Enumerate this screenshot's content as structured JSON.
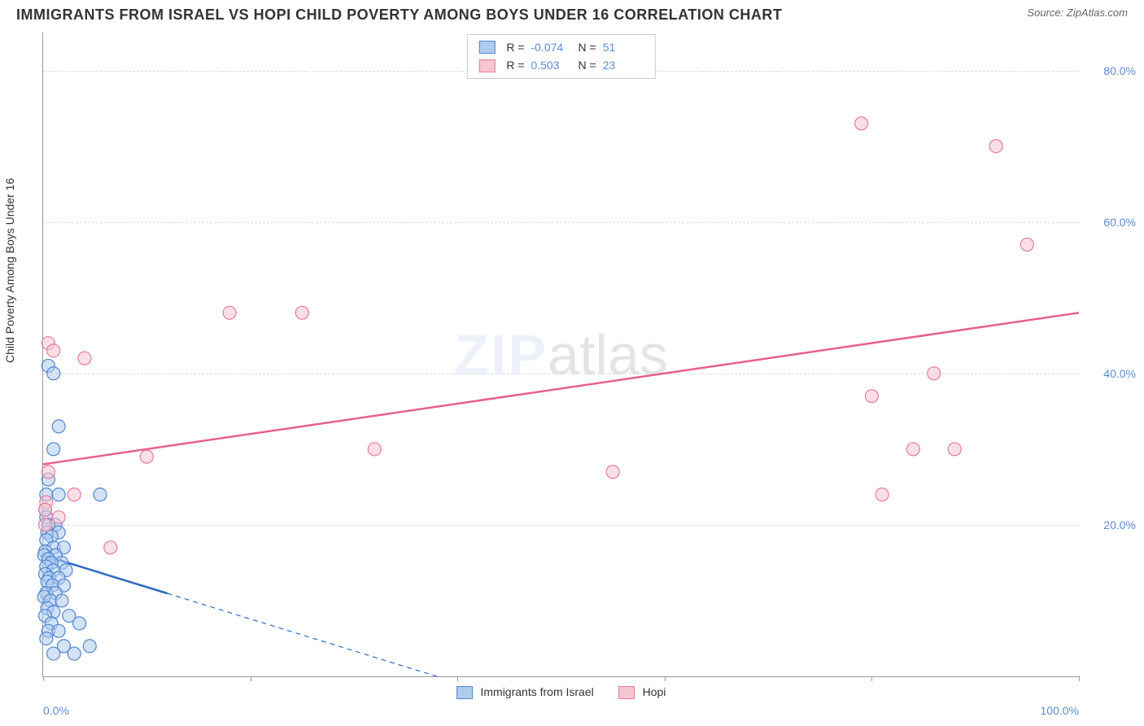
{
  "header": {
    "title": "IMMIGRANTS FROM ISRAEL VS HOPI CHILD POVERTY AMONG BOYS UNDER 16 CORRELATION CHART",
    "source_label": "Source:",
    "source_value": "ZipAtlas.com"
  },
  "watermark": {
    "zip": "ZIP",
    "atlas": "atlas"
  },
  "chart": {
    "type": "scatter",
    "ylabel": "Child Poverty Among Boys Under 16",
    "xlim": [
      0,
      100
    ],
    "ylim": [
      0,
      85
    ],
    "xtick_positions": [
      0,
      20,
      40,
      60,
      80,
      100
    ],
    "xtick_labels_shown": {
      "0": "0.0%",
      "100": "100.0%"
    },
    "ytick_positions": [
      20,
      40,
      60,
      80
    ],
    "ytick_labels": [
      "20.0%",
      "40.0%",
      "60.0%",
      "80.0%"
    ],
    "grid_color": "#dddddd",
    "background_color": "#ffffff",
    "axis_color": "#999999",
    "tick_label_color": "#5b8dd6",
    "marker_radius": 8,
    "marker_stroke_width": 1.2,
    "trend_line_width": 2.5,
    "series": [
      {
        "name": "Immigrants from Israel",
        "fill": "#aecbec",
        "stroke": "#4f86d1",
        "fill_opacity": 0.55,
        "legend_fill": "#aecbec",
        "legend_stroke": "#4f86d1",
        "R": "-0.074",
        "N": "51",
        "trend": {
          "x1": 0,
          "y1": 16,
          "x2": 38,
          "y2": 0,
          "color": "#2e6bc0",
          "dash_tail": true,
          "solid_until_x": 12
        },
        "points": [
          {
            "x": 0.5,
            "y": 41
          },
          {
            "x": 1.0,
            "y": 40
          },
          {
            "x": 1.5,
            "y": 33
          },
          {
            "x": 1.0,
            "y": 30
          },
          {
            "x": 0.5,
            "y": 26
          },
          {
            "x": 0.3,
            "y": 24
          },
          {
            "x": 1.5,
            "y": 24
          },
          {
            "x": 5.5,
            "y": 24
          },
          {
            "x": 0.2,
            "y": 22
          },
          {
            "x": 0.3,
            "y": 21
          },
          {
            "x": 1.2,
            "y": 20
          },
          {
            "x": 0.5,
            "y": 20
          },
          {
            "x": 0.4,
            "y": 19
          },
          {
            "x": 1.5,
            "y": 19
          },
          {
            "x": 0.8,
            "y": 18.5
          },
          {
            "x": 0.3,
            "y": 18
          },
          {
            "x": 1.0,
            "y": 17
          },
          {
            "x": 2.0,
            "y": 17
          },
          {
            "x": 0.2,
            "y": 16.5
          },
          {
            "x": 1.2,
            "y": 16
          },
          {
            "x": 0.1,
            "y": 16
          },
          {
            "x": 0.5,
            "y": 15.5
          },
          {
            "x": 1.8,
            "y": 15
          },
          {
            "x": 0.8,
            "y": 15
          },
          {
            "x": 0.3,
            "y": 14.5
          },
          {
            "x": 1.0,
            "y": 14
          },
          {
            "x": 2.2,
            "y": 14
          },
          {
            "x": 0.2,
            "y": 13.5
          },
          {
            "x": 0.6,
            "y": 13
          },
          {
            "x": 1.5,
            "y": 13
          },
          {
            "x": 0.4,
            "y": 12.5
          },
          {
            "x": 0.9,
            "y": 12
          },
          {
            "x": 2.0,
            "y": 12
          },
          {
            "x": 0.3,
            "y": 11
          },
          {
            "x": 1.2,
            "y": 11
          },
          {
            "x": 0.1,
            "y": 10.5
          },
          {
            "x": 0.7,
            "y": 10
          },
          {
            "x": 1.8,
            "y": 10
          },
          {
            "x": 0.4,
            "y": 9
          },
          {
            "x": 1.0,
            "y": 8.5
          },
          {
            "x": 2.5,
            "y": 8
          },
          {
            "x": 0.2,
            "y": 8
          },
          {
            "x": 0.8,
            "y": 7
          },
          {
            "x": 3.5,
            "y": 7
          },
          {
            "x": 0.5,
            "y": 6
          },
          {
            "x": 1.5,
            "y": 6
          },
          {
            "x": 0.3,
            "y": 5
          },
          {
            "x": 2.0,
            "y": 4
          },
          {
            "x": 4.5,
            "y": 4
          },
          {
            "x": 1.0,
            "y": 3
          },
          {
            "x": 3.0,
            "y": 3
          }
        ]
      },
      {
        "name": "Hopi",
        "fill": "#f6c6d2",
        "stroke": "#e97a9a",
        "fill_opacity": 0.55,
        "legend_fill": "#f6c6d2",
        "legend_stroke": "#e97a9a",
        "R": "0.503",
        "N": "23",
        "trend": {
          "x1": 0,
          "y1": 28,
          "x2": 100,
          "y2": 48,
          "color": "#e86189",
          "dash_tail": false
        },
        "points": [
          {
            "x": 0.5,
            "y": 44
          },
          {
            "x": 1.0,
            "y": 43
          },
          {
            "x": 4.0,
            "y": 42
          },
          {
            "x": 0.5,
            "y": 27
          },
          {
            "x": 3.0,
            "y": 24
          },
          {
            "x": 0.3,
            "y": 23
          },
          {
            "x": 0.2,
            "y": 22
          },
          {
            "x": 1.5,
            "y": 21
          },
          {
            "x": 0.2,
            "y": 20
          },
          {
            "x": 6.5,
            "y": 17
          },
          {
            "x": 10.0,
            "y": 29
          },
          {
            "x": 18.0,
            "y": 48
          },
          {
            "x": 25.0,
            "y": 48
          },
          {
            "x": 32.0,
            "y": 30
          },
          {
            "x": 55.0,
            "y": 27
          },
          {
            "x": 79.0,
            "y": 73
          },
          {
            "x": 80.0,
            "y": 37
          },
          {
            "x": 81.0,
            "y": 24
          },
          {
            "x": 86.0,
            "y": 40
          },
          {
            "x": 88.0,
            "y": 30
          },
          {
            "x": 92.0,
            "y": 70
          },
          {
            "x": 95.0,
            "y": 57
          },
          {
            "x": 84.0,
            "y": 30
          }
        ]
      }
    ]
  },
  "bottom_legend": {
    "items": [
      {
        "label": "Immigrants from Israel",
        "fill": "#aecbec",
        "stroke": "#4f86d1"
      },
      {
        "label": "Hopi",
        "fill": "#f6c6d2",
        "stroke": "#e97a9a"
      }
    ]
  }
}
